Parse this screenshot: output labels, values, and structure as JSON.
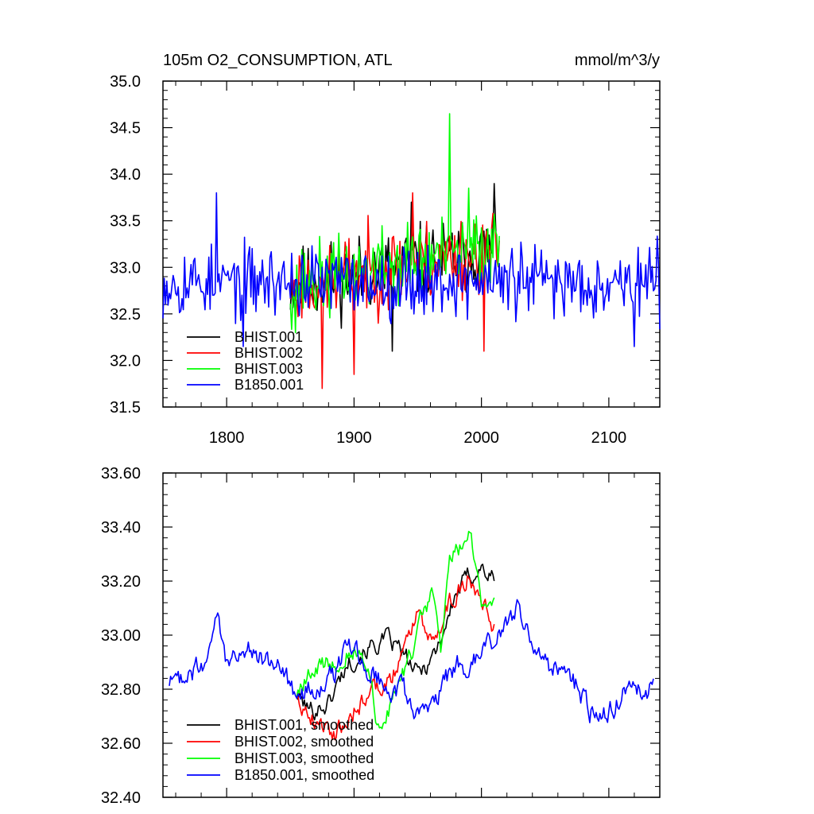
{
  "chart_data": [
    {
      "type": "line",
      "title": "105m O2_CONSUMPTION, ATL",
      "units": "mmol/m^3/y",
      "xlim": [
        1750,
        2140
      ],
      "ylim": [
        31.5,
        35.0
      ],
      "xticks": [
        1800,
        1900,
        2000,
        2100
      ],
      "xtick_labels": [
        "1800",
        "1900",
        "2000",
        "2100"
      ],
      "yticks": [
        31.5,
        32.0,
        32.5,
        33.0,
        33.5,
        34.0,
        34.5,
        35.0
      ],
      "ytick_labels": [
        "31.5",
        "32.0",
        "32.5",
        "33.0",
        "33.5",
        "34.0",
        "34.5",
        "35.0"
      ],
      "legend_position": "bottom-left",
      "series": [
        {
          "name": "BHIST.001",
          "color": "#000000",
          "x_start": 1850,
          "x_end": 2014,
          "mean_start": 32.8,
          "mean_end": 33.2,
          "amplitude": 0.35,
          "seed": 11,
          "peaks": [
            [
              1930,
              32.1
            ],
            [
              1945,
              33.7
            ],
            [
              2010,
              33.9
            ]
          ]
        },
        {
          "name": "BHIST.002",
          "color": "#ff0000",
          "x_start": 1850,
          "x_end": 2014,
          "mean_start": 32.8,
          "mean_end": 33.2,
          "amplitude": 0.38,
          "seed": 23,
          "peaks": [
            [
              1875,
              31.7
            ],
            [
              1900,
              31.85
            ],
            [
              1946,
              33.8
            ],
            [
              2002,
              32.1
            ]
          ]
        },
        {
          "name": "BHIST.003",
          "color": "#00ff00",
          "x_start": 1850,
          "x_end": 2014,
          "mean_start": 32.8,
          "mean_end": 33.25,
          "amplitude": 0.36,
          "seed": 37,
          "peaks": [
            [
              1975,
              34.65
            ],
            [
              1990,
              33.85
            ],
            [
              1854,
              32.3
            ]
          ]
        },
        {
          "name": "B1850.001",
          "color": "#0000ff",
          "x_start": 1750,
          "x_end": 2140,
          "mean_start": 32.85,
          "mean_end": 32.85,
          "amplitude": 0.33,
          "seed": 53,
          "peaks": [
            [
              1792,
              33.8
            ],
            [
              1813,
              32.15
            ],
            [
              2120,
              32.15
            ]
          ]
        }
      ]
    },
    {
      "type": "line",
      "title": "",
      "xlim": [
        1750,
        2140
      ],
      "ylim": [
        32.4,
        33.6
      ],
      "yticks": [
        32.4,
        32.6,
        32.8,
        33.0,
        33.2,
        33.4,
        33.6
      ],
      "ytick_labels": [
        "32.40",
        "32.60",
        "32.80",
        "33.00",
        "33.20",
        "33.40",
        "33.60"
      ],
      "legend_position": "bottom-left",
      "series": [
        {
          "name": "BHIST.001, smoothed",
          "color": "#000000",
          "x_start": 1855,
          "x_end": 2010,
          "knots": [
            [
              1855,
              32.78
            ],
            [
              1865,
              32.72
            ],
            [
              1880,
              32.75
            ],
            [
              1895,
              32.9
            ],
            [
              1910,
              32.95
            ],
            [
              1925,
              32.98
            ],
            [
              1935,
              32.95
            ],
            [
              1950,
              32.85
            ],
            [
              1965,
              32.95
            ],
            [
              1980,
              33.15
            ],
            [
              1990,
              33.22
            ],
            [
              2000,
              33.25
            ],
            [
              2010,
              33.2
            ]
          ],
          "noise": 0.03,
          "seed": 101
        },
        {
          "name": "BHIST.002, smoothed",
          "color": "#ff0000",
          "x_start": 1855,
          "x_end": 2010,
          "knots": [
            [
              1855,
              32.78
            ],
            [
              1870,
              32.68
            ],
            [
              1885,
              32.64
            ],
            [
              1900,
              32.72
            ],
            [
              1915,
              32.8
            ],
            [
              1930,
              32.85
            ],
            [
              1940,
              32.95
            ],
            [
              1950,
              33.1
            ],
            [
              1960,
              32.98
            ],
            [
              1975,
              33.12
            ],
            [
              1990,
              33.22
            ],
            [
              2000,
              33.15
            ],
            [
              2010,
              33.03
            ]
          ],
          "noise": 0.03,
          "seed": 202
        },
        {
          "name": "BHIST.003, smoothed",
          "color": "#00ff00",
          "x_start": 1855,
          "x_end": 2010,
          "knots": [
            [
              1855,
              32.78
            ],
            [
              1870,
              32.88
            ],
            [
              1885,
              32.9
            ],
            [
              1900,
              32.95
            ],
            [
              1910,
              32.9
            ],
            [
              1920,
              32.64
            ],
            [
              1930,
              32.75
            ],
            [
              1945,
              32.92
            ],
            [
              1955,
              33.1
            ],
            [
              1962,
              33.15
            ],
            [
              1968,
              32.95
            ],
            [
              1975,
              33.3
            ],
            [
              1985,
              33.32
            ],
            [
              1990,
              33.42
            ],
            [
              2000,
              33.1
            ],
            [
              2010,
              33.15
            ]
          ],
          "noise": 0.03,
          "seed": 303
        },
        {
          "name": "B1850.001, smoothed",
          "color": "#0000ff",
          "x_start": 1755,
          "x_end": 2135,
          "knots": [
            [
              1755,
              32.82
            ],
            [
              1770,
              32.86
            ],
            [
              1785,
              32.9
            ],
            [
              1792,
              33.08
            ],
            [
              1800,
              32.9
            ],
            [
              1815,
              32.95
            ],
            [
              1830,
              32.9
            ],
            [
              1845,
              32.88
            ],
            [
              1855,
              32.75
            ],
            [
              1870,
              32.82
            ],
            [
              1885,
              32.85
            ],
            [
              1895,
              32.96
            ],
            [
              1910,
              32.88
            ],
            [
              1925,
              32.83
            ],
            [
              1940,
              32.78
            ],
            [
              1950,
              32.72
            ],
            [
              1960,
              32.7
            ],
            [
              1970,
              32.82
            ],
            [
              1980,
              32.9
            ],
            [
              1990,
              32.88
            ],
            [
              2000,
              32.92
            ],
            [
              2015,
              33.0
            ],
            [
              2030,
              33.1
            ],
            [
              2040,
              32.95
            ],
            [
              2055,
              32.88
            ],
            [
              2070,
              32.85
            ],
            [
              2085,
              32.72
            ],
            [
              2100,
              32.72
            ],
            [
              2115,
              32.82
            ],
            [
              2125,
              32.78
            ],
            [
              2135,
              32.8
            ]
          ],
          "noise": 0.035,
          "seed": 404
        }
      ]
    }
  ]
}
